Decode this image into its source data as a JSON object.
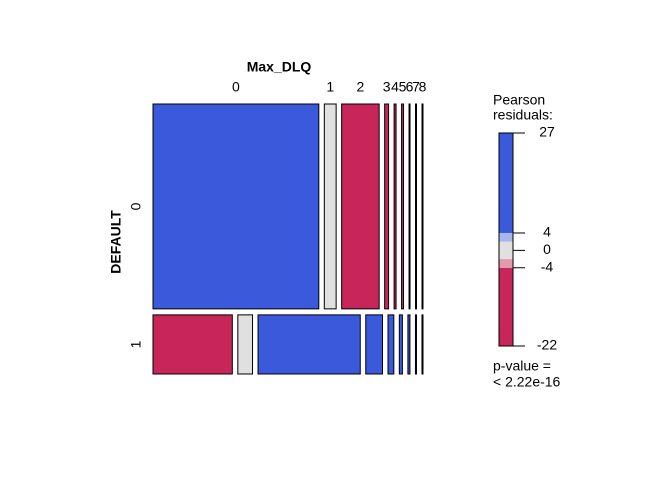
{
  "chart_data": {
    "type": "mosaic",
    "column_variable": "Max_DLQ",
    "row_variable": "DEFAULT",
    "columns": [
      "0",
      "1",
      "2",
      "3",
      "4",
      "5",
      "6",
      "7",
      "8"
    ],
    "rows": [
      "0",
      "1"
    ],
    "counts": [
      [
        1680,
        120,
        380,
        40,
        20,
        20,
        10,
        10,
        10
      ],
      [
        232,
        43,
        299,
        49,
        17,
        9,
        6,
        3,
        3
      ]
    ],
    "residuals": [
      [
        10,
        0,
        -10,
        -5,
        -5,
        -5,
        -5,
        -5,
        -5
      ],
      [
        -22,
        0,
        27,
        8,
        5,
        5,
        5,
        5,
        5
      ]
    ],
    "legend": {
      "title": [
        "Pearson",
        "residuals:"
      ],
      "ylim": [
        -22,
        27
      ],
      "ticks": [
        27,
        4,
        0,
        -4,
        -22
      ],
      "shading_breaks": [
        2,
        4
      ],
      "colors": [
        "#c8265a",
        "#e398ab",
        "#e0e0e0",
        "#a9b6ee",
        "#3b59db"
      ]
    },
    "p_value": [
      "p-value =",
      "< 2.22e-16"
    ]
  }
}
